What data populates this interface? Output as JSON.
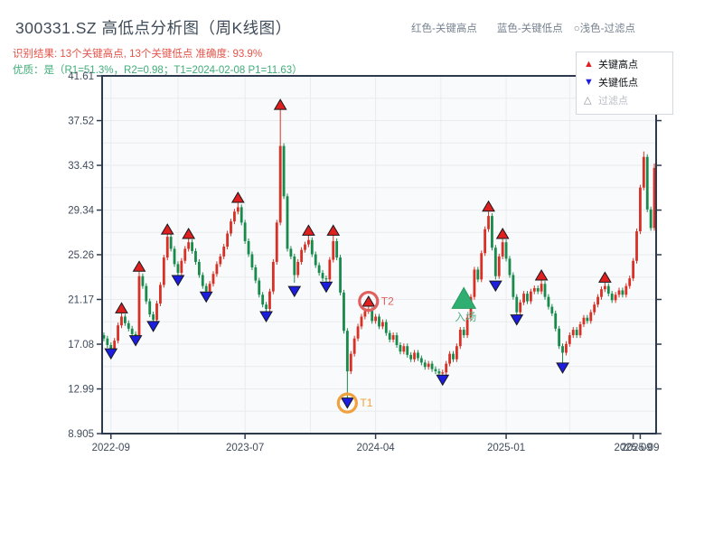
{
  "header": {
    "title": "300331.SZ 高低点分析图（周K线图）",
    "inline_legend": {
      "high": "红色-关键高点",
      "low": "蓝色-关键低点",
      "filtered": "○浅色-过滤点"
    },
    "result_line": "识别结果: 13个关键高点, 13个关键低点  准确度: 93.9%",
    "quality_line": "优质：是（R1=51.3%，R2=0.98；T1=2024-02-08 P1=11.63）"
  },
  "legend_box": {
    "items": [
      {
        "label": "关键高点",
        "marker": "triangle-up",
        "muted": false
      },
      {
        "label": "关键低点",
        "marker": "triangle-down",
        "muted": false
      },
      {
        "label": "过滤点",
        "marker": "triangle-up-light",
        "muted": true
      }
    ]
  },
  "chart_data": {
    "type": "candlestick",
    "title": "300331.SZ 高低点分析图（周K线图）",
    "timeframe": "weekly",
    "grid": true,
    "ylim": [
      8.905,
      41.61
    ],
    "y_ticks": [
      "8.905",
      "12.99",
      "17.08",
      "21.17",
      "25.26",
      "29.34",
      "33.43",
      "37.52",
      "41.61"
    ],
    "y_tick_values": [
      8.905,
      12.99,
      17.08,
      21.17,
      25.26,
      29.34,
      33.43,
      37.52,
      41.61
    ],
    "x_ticks": [
      {
        "label": "2022-09",
        "index": 2
      },
      {
        "label": "2023-07",
        "index": 40
      },
      {
        "label": "2024-04",
        "index": 77
      },
      {
        "label": "2025-01",
        "index": 114
      },
      {
        "label": "2025-09",
        "index": 150
      },
      {
        "label": "2025-09",
        "index": 152
      }
    ],
    "candles": {
      "open_first": 17.9,
      "default_wick": 0.25,
      "closes": [
        17.6,
        17.0,
        16.6,
        17.4,
        18.8,
        19.6,
        19.0,
        18.5,
        18.0,
        17.7,
        23.3,
        22.4,
        21.0,
        19.8,
        19.3,
        20.8,
        22.5,
        25.0,
        26.9,
        25.8,
        24.4,
        23.6,
        24.7,
        25.8,
        26.4,
        25.6,
        24.6,
        23.4,
        22.4,
        21.9,
        22.6,
        23.5,
        24.4,
        25.1,
        26.0,
        27.2,
        28.3,
        29.2,
        29.6,
        28.2,
        26.5,
        25.3,
        24.1,
        22.9,
        21.6,
        20.7,
        20.3,
        21.9,
        24.6,
        28.2,
        35.2,
        30.6,
        25.8,
        25.1,
        23.4,
        24.6,
        25.7,
        26.2,
        26.6,
        25.3,
        24.3,
        23.6,
        23.1,
        23.0,
        24.8,
        26.5,
        25.0,
        21.8,
        18.3,
        14.6,
        16.2,
        17.6,
        18.7,
        19.6,
        20.1,
        20.2,
        19.2,
        19.6,
        18.7,
        19.1,
        18.1,
        17.5,
        17.9,
        17.0,
        16.4,
        16.9,
        16.1,
        15.7,
        16.3,
        15.8,
        15.4,
        15.0,
        15.3,
        14.8,
        14.6,
        14.4,
        14.5,
        15.3,
        16.2,
        15.7,
        16.9,
        18.4,
        17.9,
        19.5,
        21.4,
        23.9,
        23.0,
        25.4,
        27.6,
        28.8,
        25.9,
        23.3,
        25.1,
        26.4,
        24.9,
        23.4,
        21.4,
        20.0,
        20.9,
        21.7,
        21.0,
        21.9,
        22.2,
        21.9,
        22.6,
        21.4,
        20.5,
        19.9,
        18.5,
        16.9,
        16.3,
        17.1,
        17.9,
        18.4,
        17.9,
        18.9,
        19.5,
        19.2,
        20.0,
        20.7,
        21.4,
        22.1,
        22.4,
        21.7,
        21.1,
        21.6,
        22.0,
        21.6,
        22.4,
        23.1,
        24.7,
        27.4,
        31.4,
        34.2,
        29.4,
        27.7,
        33.2
      ],
      "wick_overrides": {
        "2": {
          "low": 16.35
        },
        "5": {
          "high": 19.9
        },
        "9": {
          "low": 17.45
        },
        "10": {
          "high": 23.7
        },
        "14": {
          "low": 19.0
        },
        "18": {
          "high": 27.2
        },
        "21": {
          "low": 23.3
        },
        "24": {
          "high": 26.8
        },
        "29": {
          "low": 21.6
        },
        "38": {
          "high": 30.0
        },
        "46": {
          "low": 20.0
        },
        "50": {
          "high": 38.6
        },
        "54": {
          "low": 22.7
        },
        "58": {
          "high": 27.1
        },
        "63": {
          "low": 22.7
        },
        "65": {
          "high": 27.1
        },
        "69": {
          "low": 12.0
        },
        "75": {
          "high": 20.5
        },
        "96": {
          "low": 14.1
        },
        "109": {
          "high": 29.2
        },
        "111": {
          "low": 23.0
        },
        "113": {
          "high": 26.8
        },
        "117": {
          "low": 19.65
        },
        "124": {
          "high": 22.9
        },
        "130": {
          "low": 15.3
        },
        "142": {
          "high": 22.7
        },
        "153": {
          "high": 34.7
        },
        "156": {
          "high": 33.6
        }
      }
    },
    "key_highs": [
      {
        "index": 5,
        "price": 20.4
      },
      {
        "index": 10,
        "price": 24.2
      },
      {
        "index": 18,
        "price": 27.6
      },
      {
        "index": 24,
        "price": 27.2
      },
      {
        "index": 38,
        "price": 30.5
      },
      {
        "index": 50,
        "price": 39.0
      },
      {
        "index": 58,
        "price": 27.5
      },
      {
        "index": 65,
        "price": 27.5
      },
      {
        "index": 75,
        "price": 21.0
      },
      {
        "index": 109,
        "price": 29.7
      },
      {
        "index": 113,
        "price": 27.2
      },
      {
        "index": 124,
        "price": 23.4
      },
      {
        "index": 142,
        "price": 23.2
      }
    ],
    "key_lows": [
      {
        "index": 2,
        "price": 16.2
      },
      {
        "index": 9,
        "price": 17.4
      },
      {
        "index": 14,
        "price": 18.7
      },
      {
        "index": 21,
        "price": 22.9
      },
      {
        "index": 29,
        "price": 21.4
      },
      {
        "index": 46,
        "price": 19.6
      },
      {
        "index": 54,
        "price": 21.9
      },
      {
        "index": 63,
        "price": 22.3
      },
      {
        "index": 69,
        "price": 11.7
      },
      {
        "index": 96,
        "price": 13.8
      },
      {
        "index": 111,
        "price": 22.4
      },
      {
        "index": 117,
        "price": 19.3
      },
      {
        "index": 130,
        "price": 14.9
      }
    ],
    "annotations": {
      "t1": {
        "index": 69,
        "price": 11.7,
        "label": "T1",
        "note_price": "11.63"
      },
      "t2": {
        "index": 75,
        "price": 21.0,
        "label": "T2"
      },
      "entry": {
        "index": 102,
        "price": 21.3,
        "label": "入场"
      }
    },
    "colors": {
      "up": "#d93025",
      "down": "#188a4c",
      "key_high": "#e01f1f",
      "key_low": "#1d1de0",
      "marker_edge": "#15181d",
      "entry": "#2fae71",
      "entry_text": "#57b287",
      "t1": "#f0a03c",
      "t2": "#e06060",
      "spine": "#2d3a4d",
      "grid": "#e9ebee",
      "plot_bg": "#f9fafb",
      "tick_label": "#3f4b5b"
    }
  }
}
